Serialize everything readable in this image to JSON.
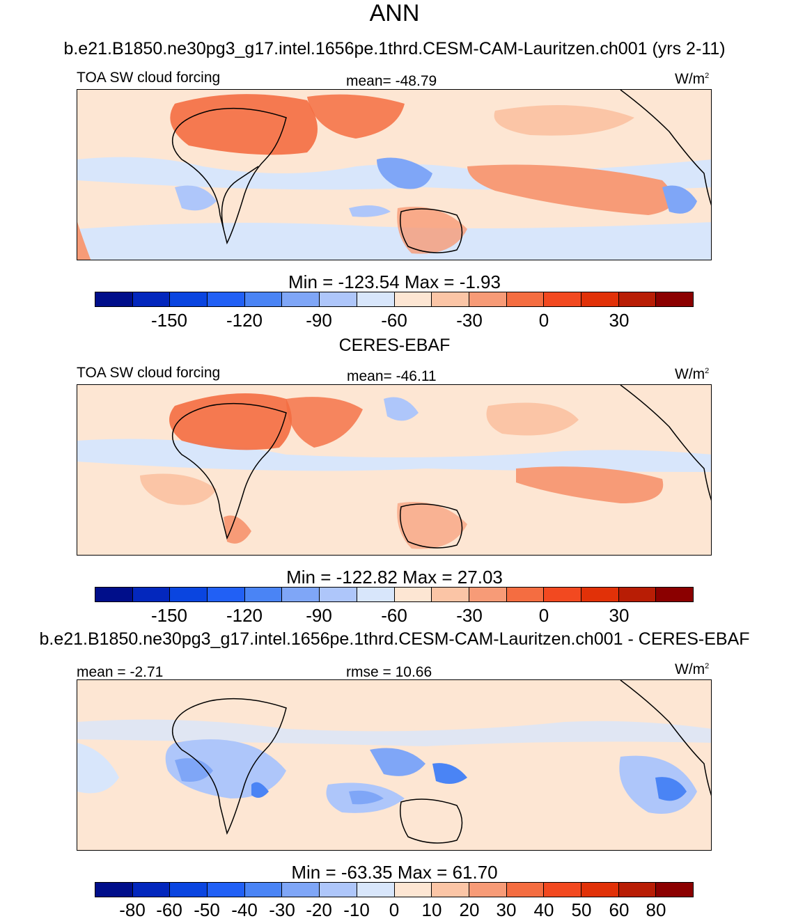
{
  "page_title": "ANN",
  "panels": [
    {
      "title": "b.e21.B1850.ne30pg3_g17.intel.1656pe.1thrd.CESM-CAM-Lauritzen.ch001 (yrs 2-11)",
      "left_label": "TOA SW cloud forcing",
      "center_label": "mean= -48.79",
      "units": "W/m",
      "units_sup": "2",
      "minmax": "Min = -123.54 Max =  -1.93",
      "colorbar_ticks": [
        "-150",
        "-120",
        "-90",
        "-60",
        "-30",
        "0",
        "30"
      ]
    },
    {
      "title": "CERES-EBAF",
      "left_label": "TOA SW cloud forcing",
      "center_label": "mean= -46.11",
      "units": "W/m",
      "units_sup": "2",
      "minmax": "Min = -122.82 Max =  27.03",
      "colorbar_ticks": [
        "-150",
        "-120",
        "-90",
        "-60",
        "-30",
        "0",
        "30"
      ]
    },
    {
      "title": "b.e21.B1850.ne30pg3_g17.intel.1656pe.1thrd.CESM-CAM-Lauritzen.ch001 - CERES-EBAF",
      "left_label": "mean =  -2.71",
      "center_label": "rmse =  10.66",
      "units": "W/m",
      "units_sup": "2",
      "minmax": "Min = -63.35 Max =  61.70",
      "colorbar_ticks": [
        "-80",
        "-60",
        "-50",
        "-40",
        "-30",
        "-20",
        "-10",
        "0",
        "10",
        "20",
        "30",
        "40",
        "50",
        "60",
        "80"
      ]
    }
  ],
  "colorbar_colors": [
    "#000e8a",
    "#0327bd",
    "#0a45e0",
    "#2160f5",
    "#4a84f5",
    "#7fa6f7",
    "#aec6fa",
    "#d8e6fb",
    "#fde6d3",
    "#fbc5a6",
    "#f79b77",
    "#f46d41",
    "#f24920",
    "#e13108",
    "#b81d05",
    "#8b0000"
  ]
}
